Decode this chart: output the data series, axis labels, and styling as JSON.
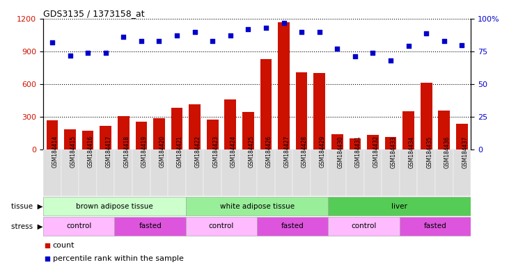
{
  "title": "GDS3135 / 1373158_at",
  "samples": [
    "GSM184414",
    "GSM184415",
    "GSM184416",
    "GSM184417",
    "GSM184418",
    "GSM184419",
    "GSM184420",
    "GSM184421",
    "GSM184422",
    "GSM184423",
    "GSM184424",
    "GSM184425",
    "GSM184426",
    "GSM184427",
    "GSM184428",
    "GSM184429",
    "GSM184430",
    "GSM184431",
    "GSM184432",
    "GSM184433",
    "GSM184434",
    "GSM184435",
    "GSM184436",
    "GSM184437"
  ],
  "counts": [
    270,
    185,
    170,
    215,
    305,
    255,
    290,
    385,
    415,
    275,
    460,
    345,
    830,
    1170,
    710,
    700,
    140,
    105,
    135,
    115,
    350,
    610,
    360,
    235
  ],
  "percentile": [
    82,
    72,
    74,
    74,
    86,
    83,
    83,
    87,
    90,
    83,
    87,
    92,
    93,
    97,
    90,
    90,
    77,
    71,
    74,
    68,
    79,
    89,
    83,
    80
  ],
  "ylim_left": [
    0,
    1200
  ],
  "ylim_right": [
    0,
    100
  ],
  "yticks_left": [
    0,
    300,
    600,
    900,
    1200
  ],
  "yticks_right": [
    0,
    25,
    50,
    75,
    100
  ],
  "bar_color": "#cc1100",
  "dot_color": "#0000cc",
  "tissue_groups": [
    {
      "label": "brown adipose tissue",
      "start": 0,
      "end": 8,
      "color": "#ccffcc"
    },
    {
      "label": "white adipose tissue",
      "start": 8,
      "end": 16,
      "color": "#99ee99"
    },
    {
      "label": "liver",
      "start": 16,
      "end": 24,
      "color": "#55cc55"
    }
  ],
  "stress_groups": [
    {
      "label": "control",
      "start": 0,
      "end": 4,
      "color": "#ffbbff"
    },
    {
      "label": "fasted",
      "start": 4,
      "end": 8,
      "color": "#dd55dd"
    },
    {
      "label": "control",
      "start": 8,
      "end": 12,
      "color": "#ffbbff"
    },
    {
      "label": "fasted",
      "start": 12,
      "end": 16,
      "color": "#dd55dd"
    },
    {
      "label": "control",
      "start": 16,
      "end": 20,
      "color": "#ffbbff"
    },
    {
      "label": "fasted",
      "start": 20,
      "end": 24,
      "color": "#dd55dd"
    }
  ],
  "xtick_bg": "#dddddd"
}
